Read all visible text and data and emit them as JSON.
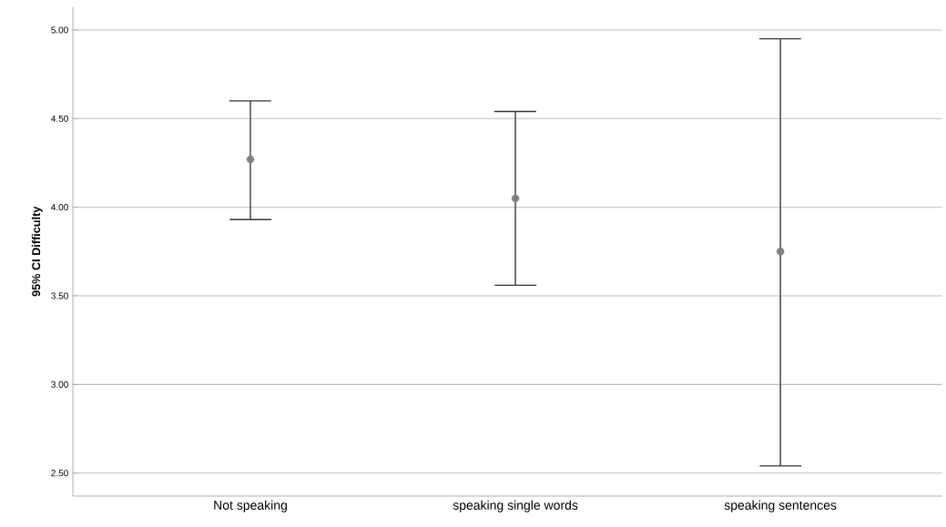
{
  "chart_data": {
    "type": "scatter",
    "ylabel": "95% CI Difficulty",
    "categories": [
      "Not speaking",
      "speaking single words",
      "speaking sentences"
    ],
    "values": [
      4.27,
      4.05,
      3.75
    ],
    "errors": [
      [
        3.93,
        4.6
      ],
      [
        3.56,
        4.54
      ],
      [
        2.54,
        4.95
      ]
    ],
    "color": "#808080",
    "marker": "circle",
    "grid": "y",
    "ylim": [
      2.37,
      5.13
    ],
    "yticks": [
      {
        "value": 2.5,
        "label": "2.50"
      },
      {
        "value": 3,
        "label": "3.00"
      },
      {
        "value": 3.5,
        "label": "3.50"
      },
      {
        "value": 4,
        "label": "4.00"
      },
      {
        "value": 4.5,
        "label": "4.50"
      },
      {
        "value": 5,
        "label": "5.00"
      }
    ]
  }
}
